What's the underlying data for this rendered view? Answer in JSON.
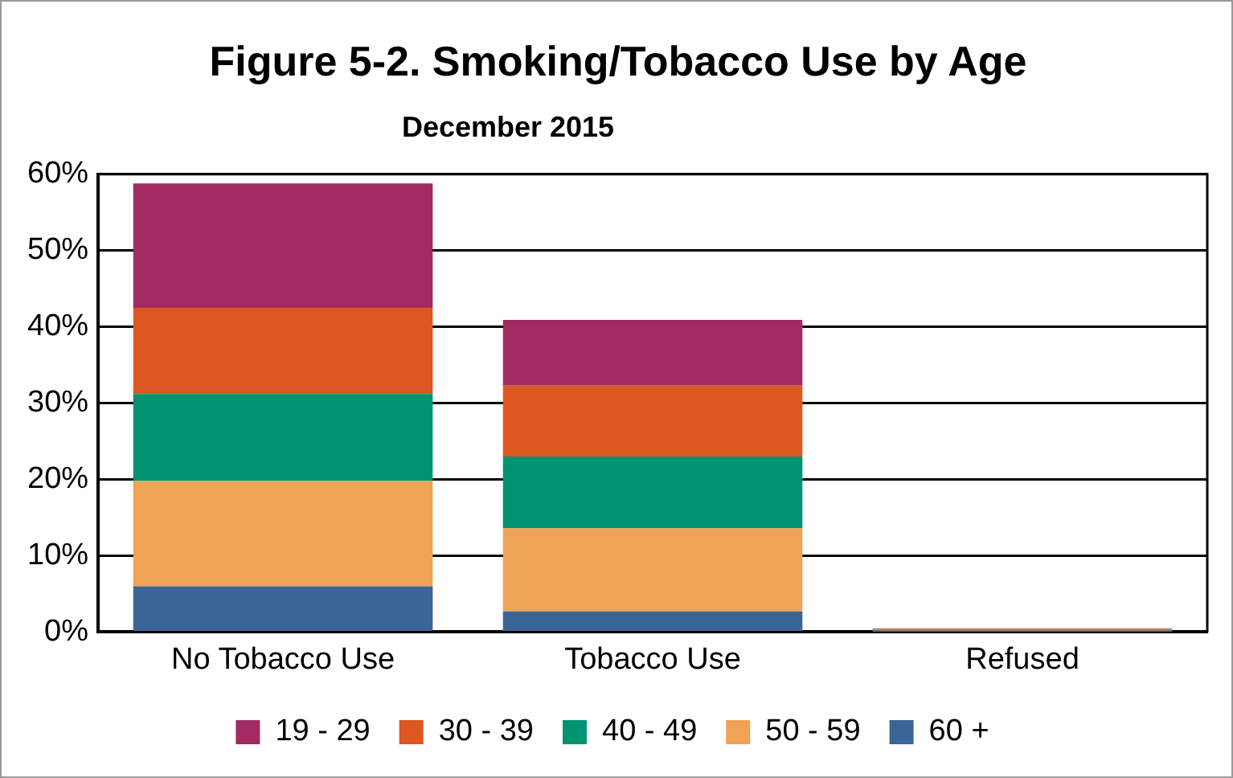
{
  "chart_data": {
    "type": "bar",
    "title": "Figure 5-2. Smoking/Tobacco Use by Age",
    "subtitle": "December 2015",
    "categories": [
      "No Tobacco Use",
      "Tobacco Use",
      "Refused"
    ],
    "stacked": true,
    "series": [
      {
        "name": "60 +",
        "color": "#3b6597",
        "values": [
          6.0,
          2.7,
          0.1
        ]
      },
      {
        "name": "50 - 59",
        "color": "#eea355",
        "values": [
          13.8,
          10.9,
          0.1
        ]
      },
      {
        "name": "40 - 49",
        "color": "#029472",
        "values": [
          11.4,
          9.4,
          0.1
        ]
      },
      {
        "name": "30 - 39",
        "color": "#dc5820",
        "values": [
          11.3,
          9.3,
          0.1
        ]
      },
      {
        "name": "19 - 29",
        "color": "#a22c61",
        "values": [
          16.3,
          8.6,
          0.1
        ]
      }
    ],
    "ylim": [
      0,
      60
    ],
    "yticks": [
      {
        "value": 0,
        "label": "0%"
      },
      {
        "value": 10,
        "label": "10%"
      },
      {
        "value": 20,
        "label": "20%"
      },
      {
        "value": 30,
        "label": "30%"
      },
      {
        "value": 40,
        "label": "40%"
      },
      {
        "value": 50,
        "label": "50%"
      },
      {
        "value": 60,
        "label": "60%"
      }
    ],
    "grid": "y",
    "legend": "bottom"
  }
}
